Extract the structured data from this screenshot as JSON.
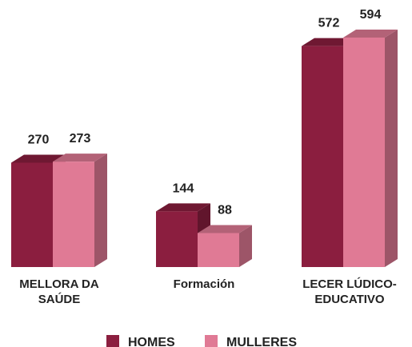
{
  "chart_data": {
    "type": "bar3d",
    "categories": [
      "MELLORA DA SAÚDE",
      "Formación",
      "LECER LÚDICO-EDUCATIVO"
    ],
    "series": [
      {
        "name": "HOMES",
        "color": "#8b1e3f",
        "values": [
          270,
          144,
          572
        ]
      },
      {
        "name": "MULLERES",
        "color": "#e07a95",
        "values": [
          273,
          88,
          594
        ]
      }
    ]
  }
}
